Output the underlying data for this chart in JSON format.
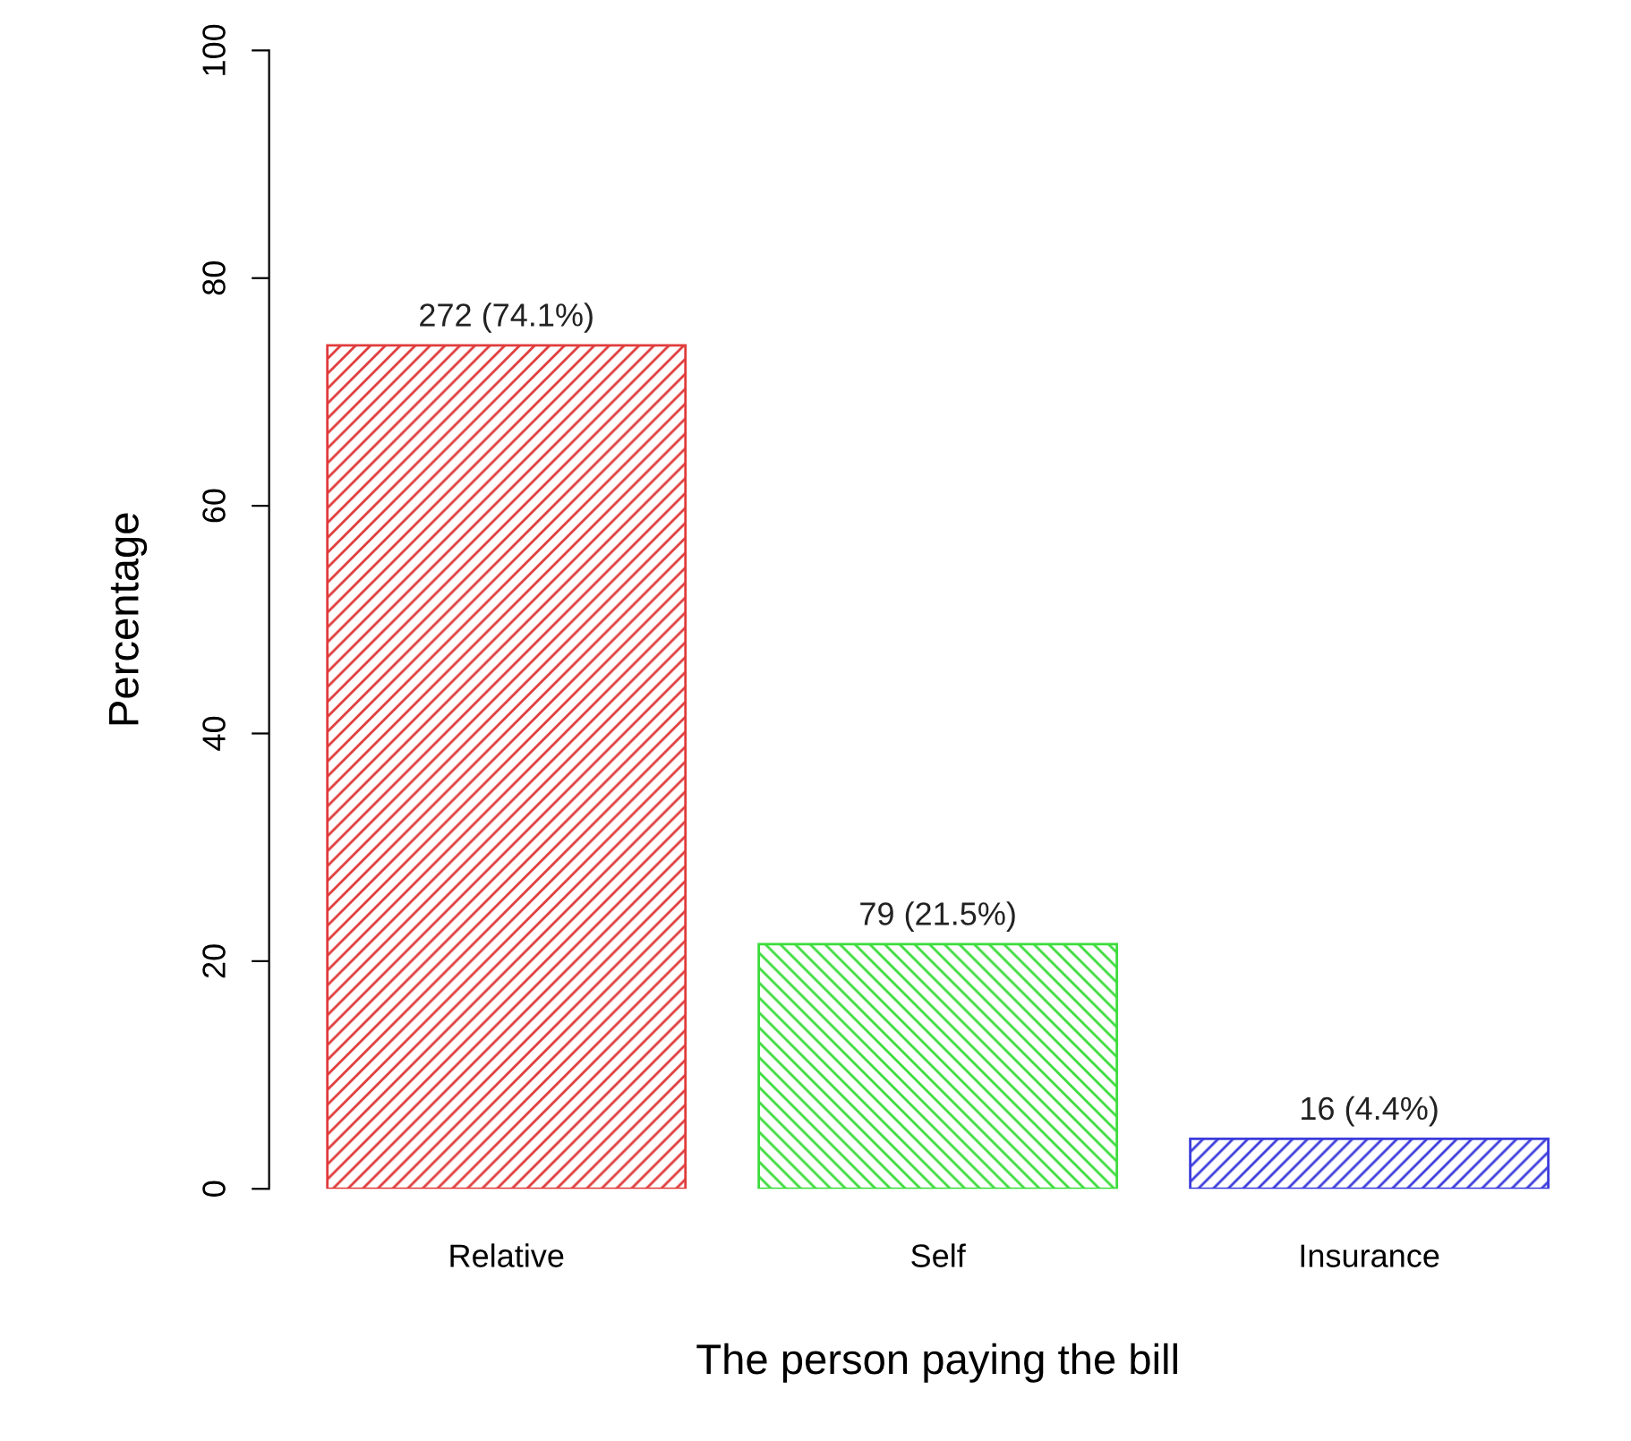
{
  "chart_data": {
    "type": "bar",
    "xlabel": "The person paying the bill",
    "ylabel": "Percentage",
    "categories": [
      "Relative",
      "Self",
      "Insurance"
    ],
    "values": [
      74.1,
      21.5,
      4.4
    ],
    "colors": [
      "#e03c3c",
      "#3cdc3c",
      "#3c3cdc"
    ],
    "value_labels": [
      "272 (74.1%)",
      "79 (21.5%)",
      "16 (4.4%)"
    ],
    "ylim": [
      0,
      100
    ],
    "yticks": [
      0,
      20,
      40,
      60,
      80,
      100
    ],
    "grid": false
  }
}
